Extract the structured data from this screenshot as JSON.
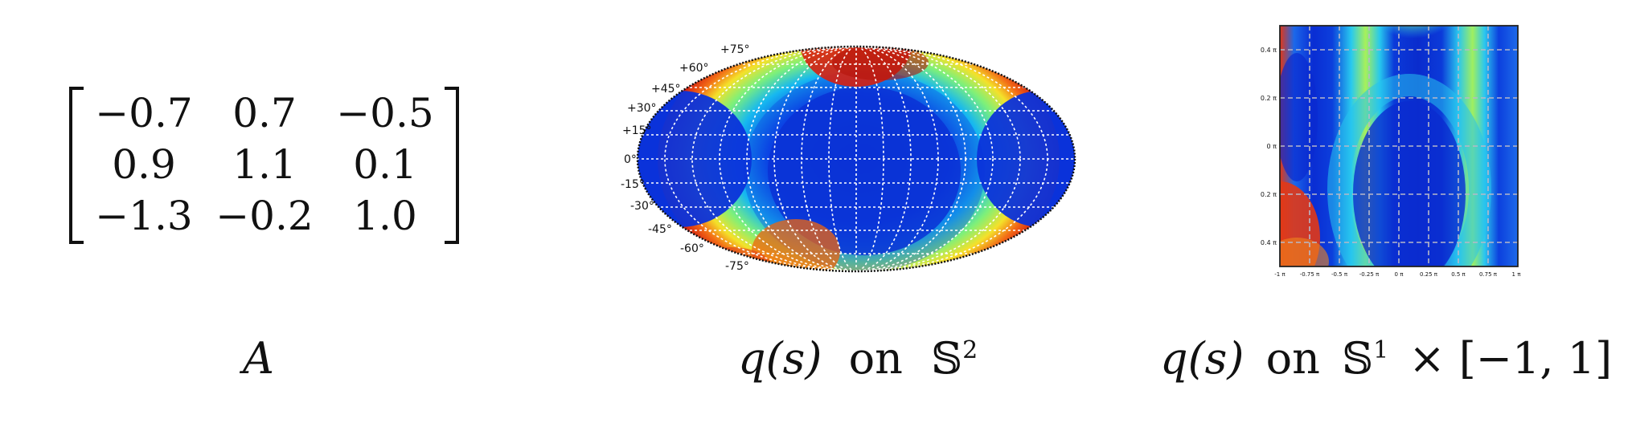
{
  "matrix": {
    "rows": [
      [
        "−0.7",
        "0.7",
        "−0.5"
      ],
      [
        "0.9",
        "1.1",
        "0.1"
      ],
      [
        "−1.3",
        "−0.2",
        "1.0"
      ]
    ]
  },
  "captions": {
    "matrix_label": "A",
    "sphere_fn": "q(s)",
    "sphere_on": "on",
    "sphere_space": "𝕊",
    "sphere_exp": "2",
    "cyl_fn": "q(s)",
    "cyl_on": "on",
    "cyl_space": "𝕊",
    "cyl_exp": "1",
    "cyl_rest": "× [−1, 1]"
  },
  "sphere_plot": {
    "projection": "mollweide",
    "lat_labels": [
      "+75°",
      "+60°",
      "+45°",
      "+30°",
      "+15°",
      "0°",
      "-15°",
      "-30°",
      "-45°",
      "-60°",
      "-75°"
    ],
    "colormap": "jet",
    "grid": true
  },
  "cyl_plot": {
    "x_ticks": [
      "-1 π",
      "-0.75 π",
      "-0.5 π",
      "-0.25 π",
      "0 π",
      "0.25 π",
      "0.5 π",
      "0.75 π",
      "1 π"
    ],
    "y_ticks": [
      "0.4 π",
      "0.2 π",
      "0 π",
      "-0.2 π",
      "-0.4 π"
    ],
    "colormap": "jet",
    "grid": true
  }
}
